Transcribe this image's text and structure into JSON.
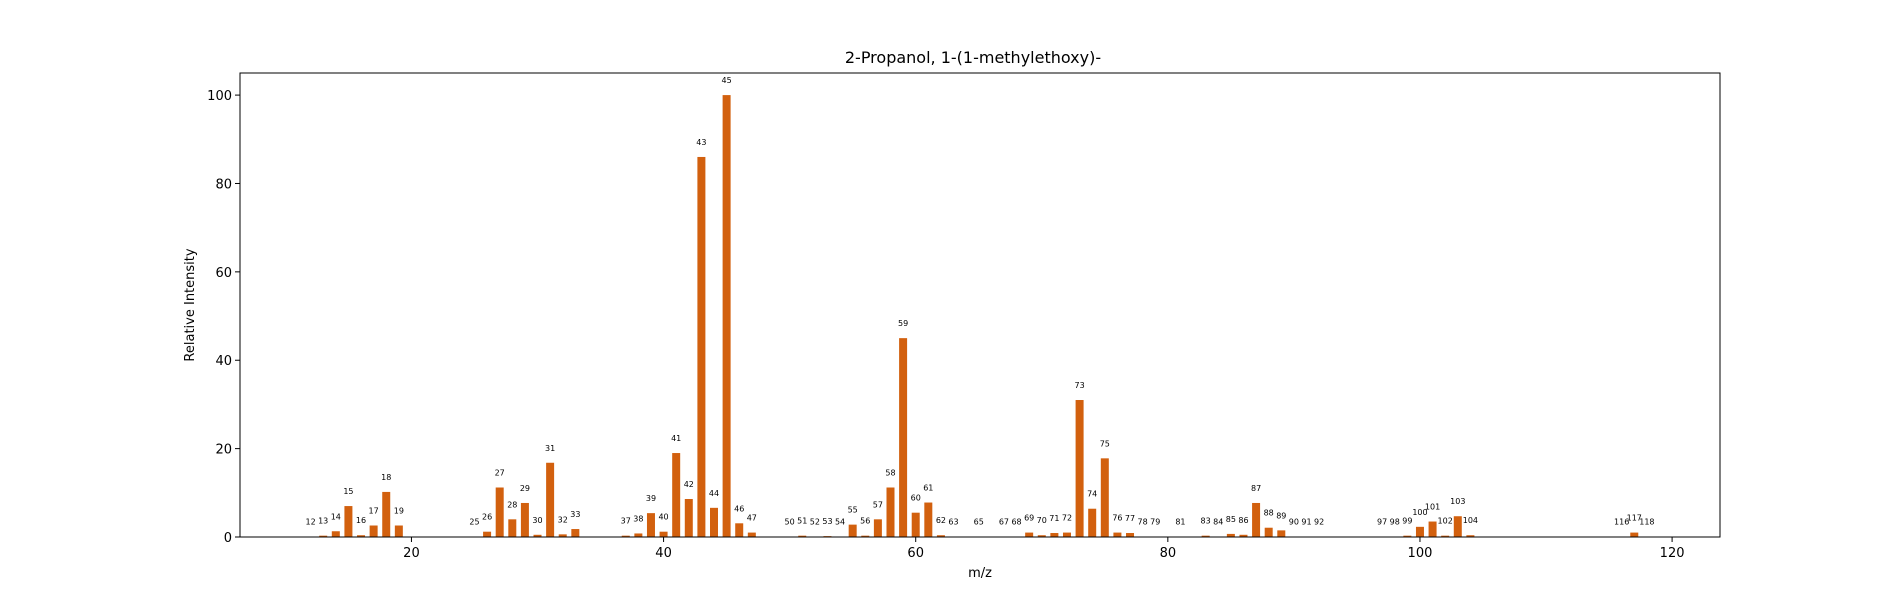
{
  "chart_data": {
    "type": "bar",
    "title": "2-Propanol, 1-(1-methylethoxy)-",
    "xlabel": "m/z",
    "ylabel": "Relative Intensity",
    "xlim": [
      6.4,
      123.8
    ],
    "ylim": [
      0,
      105
    ],
    "xticks": [
      20,
      40,
      60,
      80,
      100,
      120
    ],
    "yticks": [
      0,
      20,
      40,
      60,
      80,
      100
    ],
    "grid": false,
    "bar_color": "#d2600e",
    "points": [
      {
        "x": 12,
        "y": 0.1
      },
      {
        "x": 13,
        "y": 0.3
      },
      {
        "x": 14,
        "y": 1.3
      },
      {
        "x": 15,
        "y": 7.0
      },
      {
        "x": 16,
        "y": 0.4
      },
      {
        "x": 17,
        "y": 2.6
      },
      {
        "x": 18,
        "y": 10.2
      },
      {
        "x": 19,
        "y": 2.6
      },
      {
        "x": 25,
        "y": 0.1
      },
      {
        "x": 26,
        "y": 1.2
      },
      {
        "x": 27,
        "y": 11.2
      },
      {
        "x": 28,
        "y": 4.0
      },
      {
        "x": 29,
        "y": 7.7
      },
      {
        "x": 30,
        "y": 0.5
      },
      {
        "x": 31,
        "y": 16.8
      },
      {
        "x": 32,
        "y": 0.6
      },
      {
        "x": 33,
        "y": 1.8
      },
      {
        "x": 37,
        "y": 0.3
      },
      {
        "x": 38,
        "y": 0.8
      },
      {
        "x": 39,
        "y": 5.4
      },
      {
        "x": 40,
        "y": 1.2
      },
      {
        "x": 41,
        "y": 19.0
      },
      {
        "x": 42,
        "y": 8.6
      },
      {
        "x": 43,
        "y": 86.0
      },
      {
        "x": 44,
        "y": 6.6
      },
      {
        "x": 45,
        "y": 100.0
      },
      {
        "x": 46,
        "y": 3.1
      },
      {
        "x": 47,
        "y": 1.0
      },
      {
        "x": 50,
        "y": 0.1
      },
      {
        "x": 51,
        "y": 0.3
      },
      {
        "x": 52,
        "y": 0.1
      },
      {
        "x": 53,
        "y": 0.2
      },
      {
        "x": 54,
        "y": 0.1
      },
      {
        "x": 55,
        "y": 2.8
      },
      {
        "x": 56,
        "y": 0.3
      },
      {
        "x": 57,
        "y": 4.0
      },
      {
        "x": 58,
        "y": 11.2
      },
      {
        "x": 59,
        "y": 45.0
      },
      {
        "x": 60,
        "y": 5.5
      },
      {
        "x": 61,
        "y": 7.8
      },
      {
        "x": 62,
        "y": 0.4
      },
      {
        "x": 63,
        "y": 0.1
      },
      {
        "x": 65,
        "y": 0.1
      },
      {
        "x": 67,
        "y": 0.1
      },
      {
        "x": 68,
        "y": 0.1
      },
      {
        "x": 69,
        "y": 1.0
      },
      {
        "x": 70,
        "y": 0.4
      },
      {
        "x": 71,
        "y": 0.9
      },
      {
        "x": 72,
        "y": 1.0
      },
      {
        "x": 73,
        "y": 31.0
      },
      {
        "x": 74,
        "y": 6.4
      },
      {
        "x": 75,
        "y": 17.8
      },
      {
        "x": 76,
        "y": 1.0
      },
      {
        "x": 77,
        "y": 0.9
      },
      {
        "x": 78,
        "y": 0.1
      },
      {
        "x": 79,
        "y": 0.1
      },
      {
        "x": 81,
        "y": 0.1
      },
      {
        "x": 83,
        "y": 0.3
      },
      {
        "x": 84,
        "y": 0.1
      },
      {
        "x": 85,
        "y": 0.7
      },
      {
        "x": 86,
        "y": 0.5
      },
      {
        "x": 87,
        "y": 7.7
      },
      {
        "x": 88,
        "y": 2.1
      },
      {
        "x": 89,
        "y": 1.5
      },
      {
        "x": 90,
        "y": 0.1
      },
      {
        "x": 91,
        "y": 0.1
      },
      {
        "x": 92,
        "y": 0.1
      },
      {
        "x": 97,
        "y": 0.1
      },
      {
        "x": 98,
        "y": 0.1
      },
      {
        "x": 99,
        "y": 0.3
      },
      {
        "x": 100,
        "y": 2.3
      },
      {
        "x": 101,
        "y": 3.5
      },
      {
        "x": 102,
        "y": 0.3
      },
      {
        "x": 103,
        "y": 4.7
      },
      {
        "x": 104,
        "y": 0.4
      },
      {
        "x": 116,
        "y": 0.1
      },
      {
        "x": 117,
        "y": 1.0
      },
      {
        "x": 118,
        "y": 0.1
      }
    ]
  }
}
